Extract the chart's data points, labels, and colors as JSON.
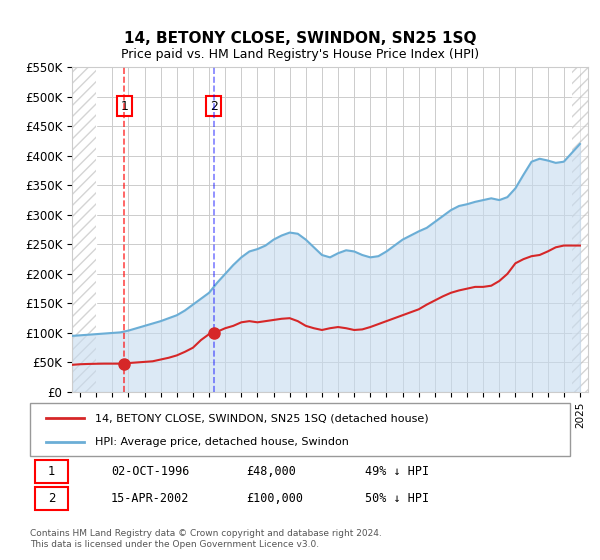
{
  "title": "14, BETONY CLOSE, SWINDON, SN25 1SQ",
  "subtitle": "Price paid vs. HM Land Registry's House Price Index (HPI)",
  "legend_line1": "14, BETONY CLOSE, SWINDON, SN25 1SQ (detached house)",
  "legend_line2": "HPI: Average price, detached house, Swindon",
  "sale1_label": "1",
  "sale1_date": "02-OCT-1996",
  "sale1_price": "£48,000",
  "sale1_hpi": "49% ↓ HPI",
  "sale1_year": 1996.75,
  "sale1_value": 48000,
  "sale2_label": "2",
  "sale2_date": "15-APR-2002",
  "sale2_price": "£100,000",
  "sale2_hpi": "50% ↓ HPI",
  "sale2_year": 2002.29,
  "sale2_value": 100000,
  "ylim": [
    0,
    550000
  ],
  "yticks": [
    0,
    50000,
    100000,
    150000,
    200000,
    250000,
    300000,
    350000,
    400000,
    450000,
    500000,
    550000
  ],
  "xlim_start": 1993.5,
  "xlim_end": 2025.5,
  "hpi_color": "#6baed6",
  "hpi_fill_color": "#c6dbef",
  "property_color": "#d62728",
  "hatch_color": "#cccccc",
  "grid_color": "#cccccc",
  "footer_text": "Contains HM Land Registry data © Crown copyright and database right 2024.\nThis data is licensed under the Open Government Licence v3.0.",
  "hpi_years": [
    1993.5,
    1994,
    1994.5,
    1995,
    1995.5,
    1996,
    1996.5,
    1997,
    1997.5,
    1998,
    1998.5,
    1999,
    1999.5,
    2000,
    2000.5,
    2001,
    2001.5,
    2002,
    2002.5,
    2003,
    2003.5,
    2004,
    2004.5,
    2005,
    2005.5,
    2006,
    2006.5,
    2007,
    2007.5,
    2008,
    2008.5,
    2009,
    2009.5,
    2010,
    2010.5,
    2011,
    2011.5,
    2012,
    2012.5,
    2013,
    2013.5,
    2014,
    2014.5,
    2015,
    2015.5,
    2016,
    2016.5,
    2017,
    2017.5,
    2018,
    2018.5,
    2019,
    2019.5,
    2020,
    2020.5,
    2021,
    2021.5,
    2022,
    2022.5,
    2023,
    2023.5,
    2024,
    2024.5,
    2025
  ],
  "hpi_values": [
    95000,
    96000,
    97000,
    98000,
    99000,
    100000,
    101000,
    104000,
    108000,
    112000,
    116000,
    120000,
    125000,
    130000,
    138000,
    148000,
    158000,
    168000,
    185000,
    200000,
    215000,
    228000,
    238000,
    242000,
    248000,
    258000,
    265000,
    270000,
    268000,
    258000,
    245000,
    232000,
    228000,
    235000,
    240000,
    238000,
    232000,
    228000,
    230000,
    238000,
    248000,
    258000,
    265000,
    272000,
    278000,
    288000,
    298000,
    308000,
    315000,
    318000,
    322000,
    325000,
    328000,
    325000,
    330000,
    345000,
    368000,
    390000,
    395000,
    392000,
    388000,
    390000,
    405000,
    420000
  ],
  "prop_years": [
    1993.5,
    1994,
    1994.5,
    1995,
    1995.5,
    1996,
    1996.5,
    1996.75,
    1997,
    1997.5,
    1998,
    1998.5,
    1999,
    1999.5,
    2000,
    2000.5,
    2001,
    2001.5,
    2002,
    2002.29,
    2002.5,
    2003,
    2003.5,
    2004,
    2004.5,
    2005,
    2005.5,
    2006,
    2006.5,
    2007,
    2007.5,
    2008,
    2008.5,
    2009,
    2009.5,
    2010,
    2010.5,
    2011,
    2011.5,
    2012,
    2012.5,
    2013,
    2013.5,
    2014,
    2014.5,
    2015,
    2015.5,
    2016,
    2016.5,
    2017,
    2017.5,
    2018,
    2018.5,
    2019,
    2019.5,
    2020,
    2020.5,
    2021,
    2021.5,
    2022,
    2022.5,
    2023,
    2023.5,
    2024,
    2024.5,
    2025
  ],
  "prop_values": [
    46000,
    47000,
    47500,
    47800,
    48000,
    48000,
    48000,
    48000,
    49000,
    50000,
    51000,
    52000,
    55000,
    58000,
    62000,
    68000,
    75000,
    88000,
    98000,
    100000,
    102000,
    108000,
    112000,
    118000,
    120000,
    118000,
    120000,
    122000,
    124000,
    125000,
    120000,
    112000,
    108000,
    105000,
    108000,
    110000,
    108000,
    105000,
    106000,
    110000,
    115000,
    120000,
    125000,
    130000,
    135000,
    140000,
    148000,
    155000,
    162000,
    168000,
    172000,
    175000,
    178000,
    178000,
    180000,
    188000,
    200000,
    218000,
    225000,
    230000,
    232000,
    238000,
    245000,
    248000,
    248000,
    248000
  ]
}
